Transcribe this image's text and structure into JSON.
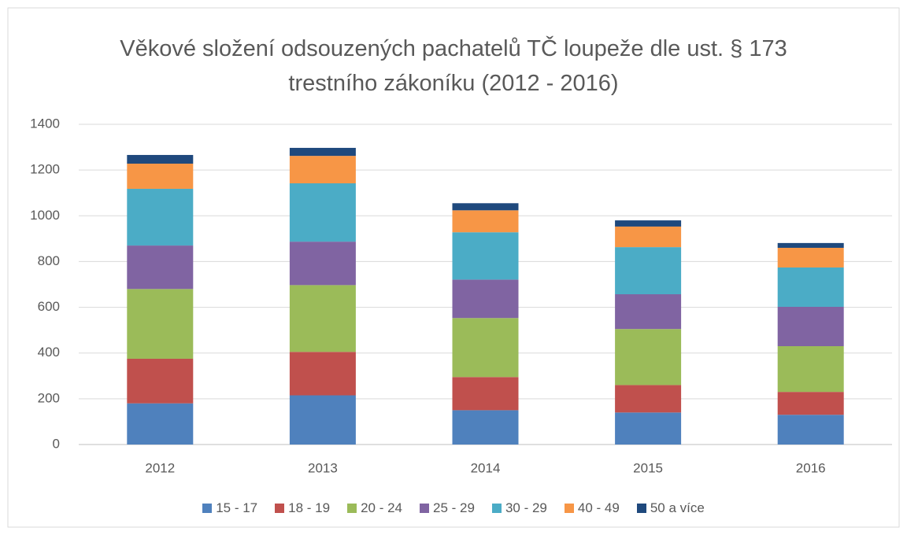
{
  "chart_data": {
    "type": "stacked_bar",
    "title": "Věkové složení odsouzených pachatelů TČ loupeže dle ust. § 173 trestního zákoníku (2012 - 2016)",
    "categories": [
      "2012",
      "2013",
      "2014",
      "2015",
      "2016"
    ],
    "series": [
      {
        "name": "15 - 17",
        "color": "#4f81bd",
        "values": [
          180,
          215,
          150,
          140,
          130
        ]
      },
      {
        "name": "18 - 19",
        "color": "#c0504d",
        "values": [
          195,
          190,
          145,
          120,
          100
        ]
      },
      {
        "name": "20 - 24",
        "color": "#9bbb59",
        "values": [
          305,
          292,
          258,
          245,
          200
        ]
      },
      {
        "name": "25 - 29",
        "color": "#8064a2",
        "values": [
          190,
          190,
          168,
          152,
          172
        ]
      },
      {
        "name": "30 - 29",
        "color": "#4bacc6",
        "values": [
          248,
          255,
          207,
          206,
          172
        ]
      },
      {
        "name": "40 - 49",
        "color": "#f79646",
        "values": [
          110,
          120,
          96,
          90,
          86
        ]
      },
      {
        "name": "50 a více",
        "color": "#1f497d",
        "values": [
          38,
          35,
          31,
          27,
          21
        ]
      }
    ],
    "ylim": [
      0,
      1400
    ],
    "yticks": [
      0,
      200,
      400,
      600,
      800,
      1000,
      1200,
      1400
    ],
    "grid": true,
    "legend": "bottom"
  }
}
